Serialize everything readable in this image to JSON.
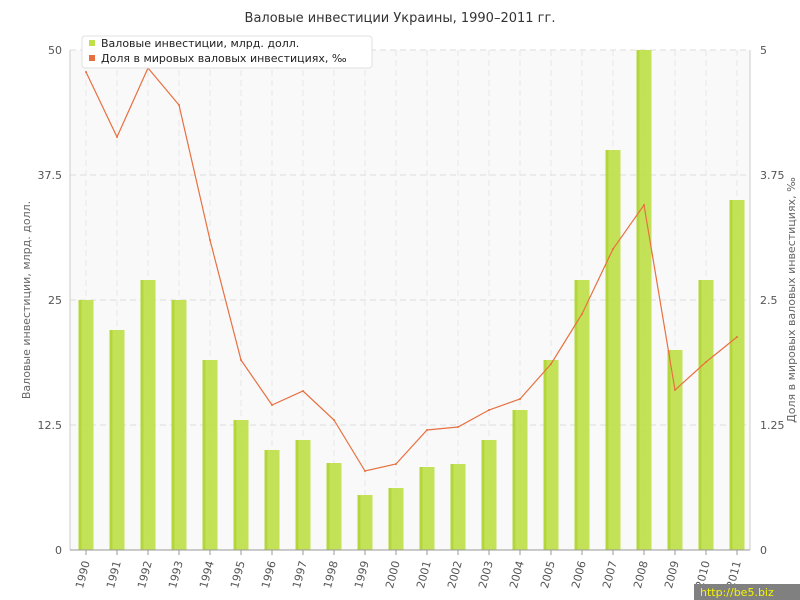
{
  "chart_data": {
    "type": "bar+line",
    "title": "Валовые инвестиции Украины, 1990–2011 гг.",
    "categories": [
      "1990",
      "1991",
      "1992",
      "1993",
      "1994",
      "1995",
      "1996",
      "1997",
      "1998",
      "1999",
      "2000",
      "2001",
      "2002",
      "2003",
      "2004",
      "2005",
      "2006",
      "2007",
      "2008",
      "2009",
      "2010",
      "2011"
    ],
    "series": [
      {
        "name": "Валовые инвестиции, млрд. долл.",
        "type": "bar",
        "axis": "left",
        "color": "#bfe04a",
        "values": [
          25,
          22,
          27,
          25,
          19,
          13,
          10,
          11,
          8.7,
          5.5,
          6.2,
          8.3,
          8.6,
          11,
          14,
          19,
          27,
          40,
          50,
          20,
          27,
          35
        ]
      },
      {
        "name": "Доля в мировых валовых инвестициях, ‰",
        "type": "line",
        "axis": "right",
        "color": "#e87040",
        "values": [
          4.78,
          4.13,
          4.82,
          4.45,
          3.1,
          1.9,
          1.45,
          1.59,
          1.3,
          0.79,
          0.86,
          1.2,
          1.23,
          1.4,
          1.51,
          1.86,
          2.36,
          3.01,
          3.45,
          1.6,
          1.88,
          2.13
        ]
      }
    ],
    "ylabel_left": "Валовые инвестиции, млрд. долл.",
    "ylabel_right": "Доля в мировых валовых инвестициях, ‰",
    "ylim_left": [
      0,
      50
    ],
    "ylim_right": [
      0,
      5
    ],
    "yticks_left": [
      "0",
      "12.5",
      "25",
      "37.5",
      "50"
    ],
    "yticks_right": [
      "0",
      "1.25",
      "2.5",
      "3.75",
      "5"
    ],
    "grid": true,
    "legend_position": "top-left"
  },
  "watermark": "http://be5.biz"
}
